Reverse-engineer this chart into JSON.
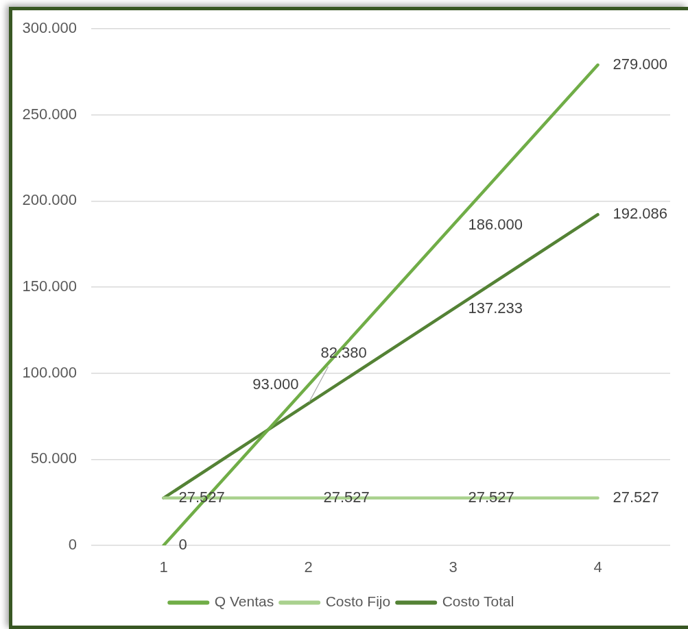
{
  "chart_data": {
    "type": "line",
    "categories": [
      "1",
      "2",
      "3",
      "4"
    ],
    "series": [
      {
        "name": "Q Ventas",
        "color": "#70ad47",
        "values": [
          0,
          93000,
          186000,
          279000
        ],
        "value_labels": [
          "0",
          "93.000",
          "186.000",
          "279.000"
        ]
      },
      {
        "name": "Costo Fijo",
        "color": "#a9d18e",
        "values": [
          27527,
          27527,
          27527,
          27527
        ],
        "value_labels": [
          null,
          "27.527",
          "27.527",
          "27.527"
        ]
      },
      {
        "name": "Costo Total",
        "color": "#548235",
        "values": [
          27527,
          82380,
          137233,
          192086
        ],
        "value_labels": [
          "27.527",
          "82.380",
          "137.233",
          "192.086"
        ]
      }
    ],
    "ylim": [
      0,
      300000
    ],
    "yticks": [
      0,
      {
        "value": 50000,
        "label": "50.000"
      },
      {
        "value": 100000,
        "label": "100.000"
      },
      {
        "value": 150000,
        "label": "150.000"
      },
      {
        "value": 200000,
        "label": "200.000"
      },
      {
        "value": 250000,
        "label": "250.000"
      },
      {
        "value": 300000,
        "label": "300.000"
      }
    ],
    "grid": "y",
    "legend": "bottom",
    "line_style": "solid"
  }
}
